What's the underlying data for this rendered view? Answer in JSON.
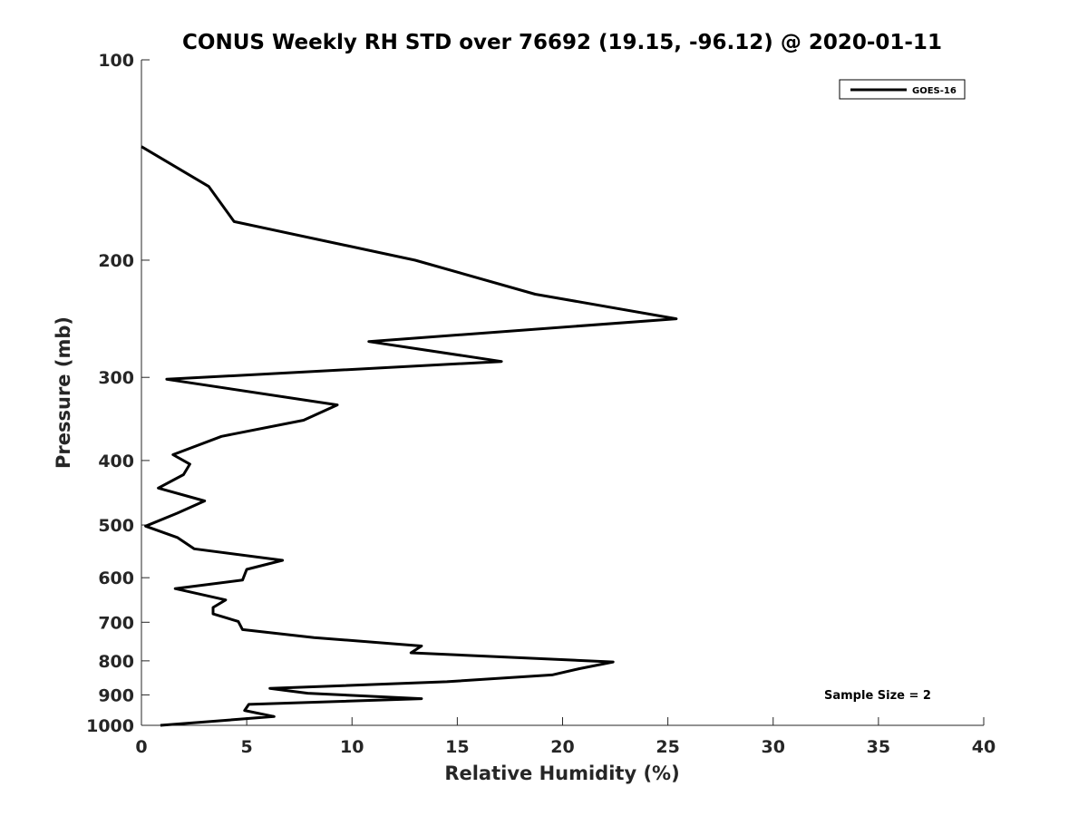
{
  "chart_data": {
    "type": "line",
    "title": "CONUS Weekly RH STD over 76692 (19.15, -96.12) @ 2020-01-11",
    "xlabel": "Relative Humidity (%)",
    "ylabel": "Pressure (mb)",
    "xlim": [
      0,
      40
    ],
    "ylim": [
      100,
      1000
    ],
    "y_scale": "log",
    "y_reversed": true,
    "x_ticks": [
      "0",
      "5",
      "10",
      "15",
      "20",
      "25",
      "30",
      "35",
      "40"
    ],
    "y_ticks": [
      "100",
      "200",
      "300",
      "400",
      "500",
      "600",
      "700",
      "800",
      "900",
      "1000"
    ],
    "grid": false,
    "legend": {
      "position": "top-right",
      "entries": [
        "GOES-16"
      ]
    },
    "annotation": "Sample Size = 2",
    "series": [
      {
        "name": "GOES-16",
        "color": "#000000",
        "points": [
          [
            0.0,
            135
          ],
          [
            3.2,
            155
          ],
          [
            4.4,
            175
          ],
          [
            13.0,
            200
          ],
          [
            18.7,
            225
          ],
          [
            25.4,
            245
          ],
          [
            10.8,
            265
          ],
          [
            17.1,
            284
          ],
          [
            1.2,
            302
          ],
          [
            9.3,
            330
          ],
          [
            7.7,
            348
          ],
          [
            3.8,
            368
          ],
          [
            1.5,
            392
          ],
          [
            2.3,
            405
          ],
          [
            2.0,
            420
          ],
          [
            0.8,
            440
          ],
          [
            3.0,
            460
          ],
          [
            1.7,
            480
          ],
          [
            0.2,
            502
          ],
          [
            1.7,
            522
          ],
          [
            2.5,
            543
          ],
          [
            6.7,
            565
          ],
          [
            5.0,
            583
          ],
          [
            4.8,
            605
          ],
          [
            1.6,
            623
          ],
          [
            4.0,
            648
          ],
          [
            3.4,
            665
          ],
          [
            3.4,
            680
          ],
          [
            4.6,
            698
          ],
          [
            4.8,
            718
          ],
          [
            8.2,
            738
          ],
          [
            13.3,
            760
          ],
          [
            12.8,
            778
          ],
          [
            22.4,
            803
          ],
          [
            20.8,
            822
          ],
          [
            19.5,
            840
          ],
          [
            14.5,
            860
          ],
          [
            6.1,
            880
          ],
          [
            7.9,
            895
          ],
          [
            13.3,
            912
          ],
          [
            5.1,
            930
          ],
          [
            4.9,
            950
          ],
          [
            6.3,
            970
          ],
          [
            0.9,
            1000
          ]
        ]
      }
    ]
  }
}
